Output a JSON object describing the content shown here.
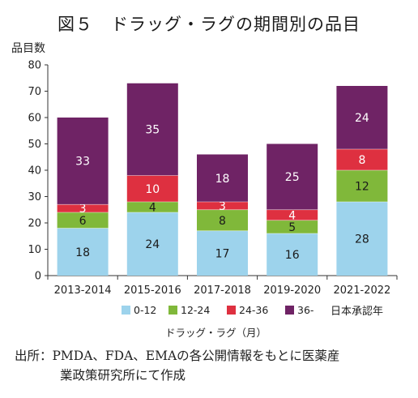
{
  "chart_data": {
    "type": "bar",
    "stacked": true,
    "title": "図５　ドラッグ・ラグの期間別の品目",
    "ylabel": "品目数",
    "xlabel": "日本承認年",
    "legend_title": "ドラッグ・ラグ（月）",
    "legend_position": "bottom",
    "ylim": [
      0,
      80
    ],
    "yticks": [
      0,
      10,
      20,
      30,
      40,
      50,
      60,
      70,
      80
    ],
    "grid": false,
    "categories": [
      "2013-2014",
      "2015-2016",
      "2017-2018",
      "2019-2020",
      "2021-2022"
    ],
    "series": [
      {
        "name": "0-12",
        "color": "#9dd3ec",
        "label_color": "#1a1a1a",
        "values": [
          18,
          24,
          17,
          16,
          28
        ]
      },
      {
        "name": "12-24",
        "color": "#80b83a",
        "label_color": "#1a1a1a",
        "values": [
          6,
          4,
          8,
          5,
          12
        ]
      },
      {
        "name": "24-36",
        "color": "#de3040",
        "label_color": "#ffffff",
        "values": [
          3,
          10,
          3,
          4,
          8
        ]
      },
      {
        "name": "36-",
        "color": "#6f2365",
        "label_color": "#ffffff",
        "values": [
          33,
          35,
          18,
          25,
          24
        ]
      }
    ]
  },
  "source": {
    "line1": "出所：PMDA、FDA、EMAの各公開情報をもとに医薬産",
    "line2": "業政策研究所にて作成"
  }
}
